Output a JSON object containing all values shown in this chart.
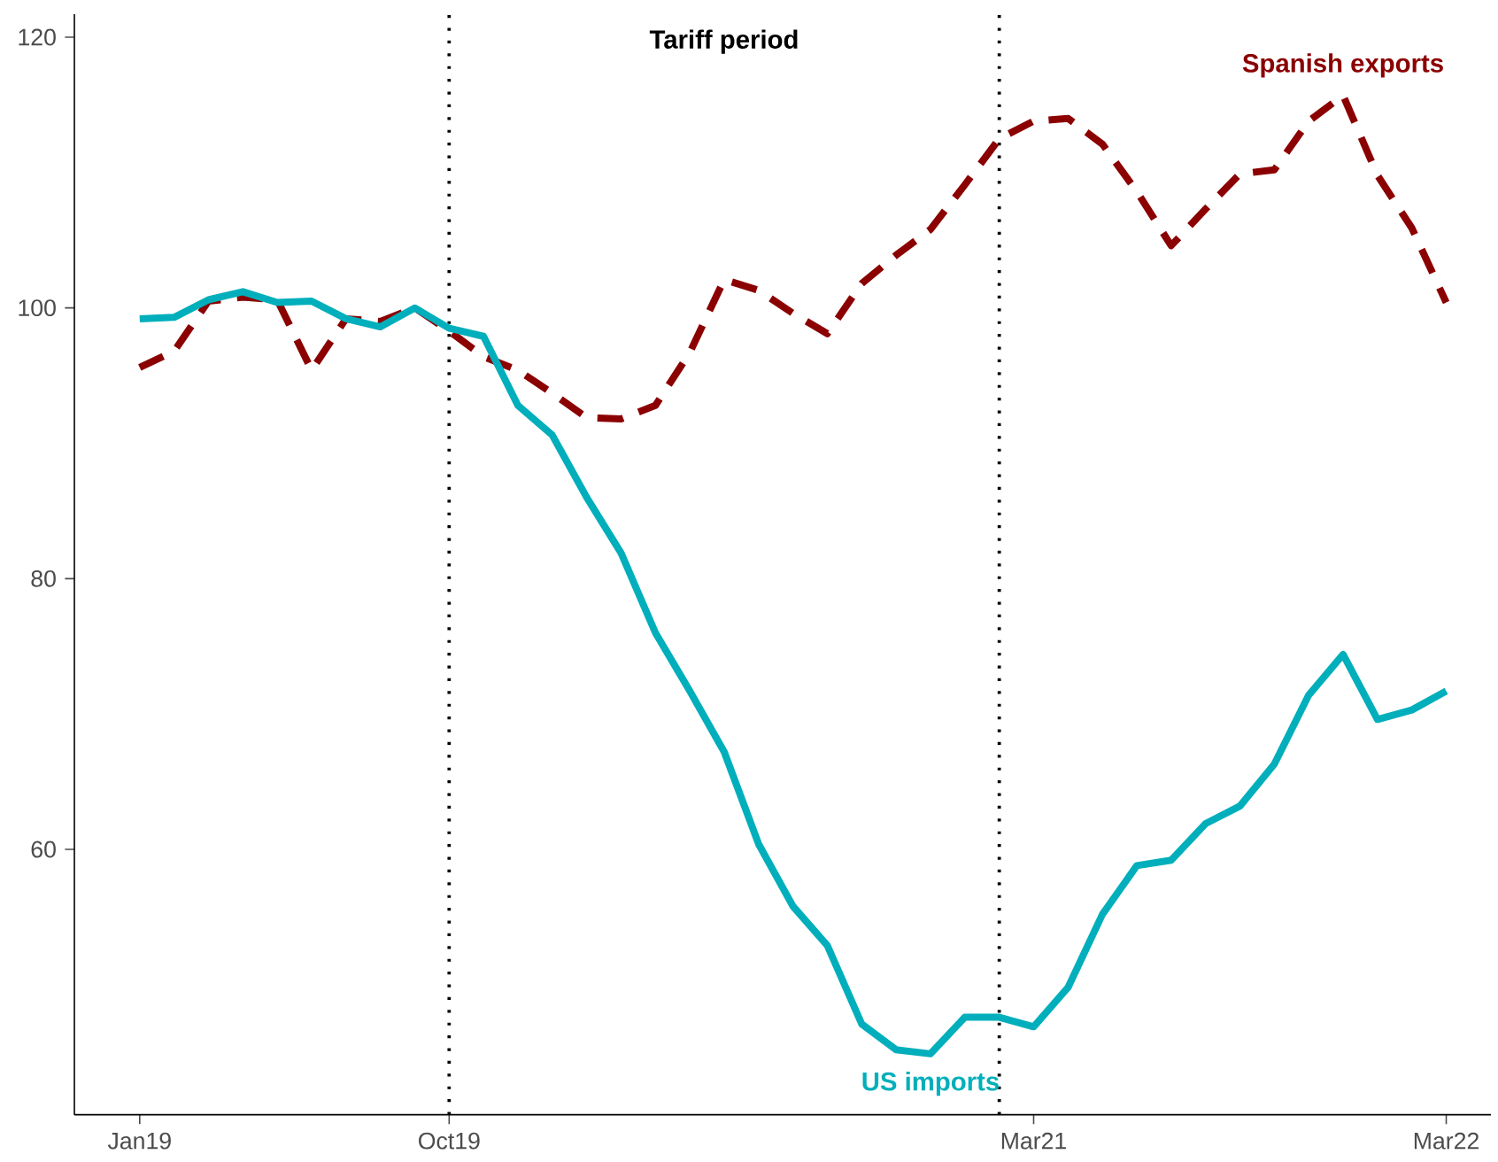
{
  "chart_data": {
    "type": "line",
    "x": [
      "2019-01",
      "2019-02",
      "2019-03",
      "2019-04",
      "2019-05",
      "2019-06",
      "2019-07",
      "2019-08",
      "2019-09",
      "2019-10",
      "2019-11",
      "2019-12",
      "2020-01",
      "2020-02",
      "2020-03",
      "2020-04",
      "2020-05",
      "2020-06",
      "2020-07",
      "2020-08",
      "2020-09",
      "2020-10",
      "2020-11",
      "2020-12",
      "2021-01",
      "2021-02",
      "2021-03",
      "2021-04",
      "2021-05",
      "2021-06",
      "2021-07",
      "2021-08",
      "2021-09",
      "2021-10",
      "2021-11",
      "2021-12",
      "2022-01",
      "2022-02",
      "2022-03"
    ],
    "series": [
      {
        "name": "Spanish exports",
        "color": "#8b0000",
        "line_style": "dashed",
        "values": [
          95.6,
          96.8,
          100.5,
          100.8,
          100.6,
          95.4,
          99.2,
          99.0,
          100.0,
          98.3,
          96.4,
          95.4,
          93.7,
          91.9,
          91.8,
          92.8,
          96.7,
          102.1,
          101.3,
          99.6,
          98.1,
          101.8,
          103.9,
          105.8,
          109.1,
          112.5,
          113.8,
          114.0,
          112.1,
          108.6,
          104.6,
          107.3,
          109.9,
          110.2,
          113.8,
          115.7,
          109.8,
          105.9,
          100.4
        ]
      },
      {
        "name": "US imports",
        "color": "#00afbb",
        "line_style": "solid",
        "values": [
          99.2,
          99.3,
          100.6,
          101.2,
          100.4,
          100.5,
          99.2,
          98.6,
          100.0,
          98.5,
          97.9,
          92.8,
          90.6,
          86.0,
          81.9,
          76.0,
          71.7,
          67.2,
          60.4,
          55.8,
          52.9,
          47.1,
          45.2,
          44.9,
          47.6,
          47.6,
          46.9,
          49.8,
          55.2,
          58.8,
          59.2,
          61.9,
          63.2,
          66.3,
          71.4,
          74.4,
          69.6,
          70.3,
          71.7
        ]
      }
    ],
    "xlim": [
      "2018-11-04",
      "2022-04-10"
    ],
    "xticks": [
      {
        "value": "2019-01",
        "label": "Jan19"
      },
      {
        "value": "2019-10",
        "label": "Oct19"
      },
      {
        "value": "2021-03",
        "label": "Mar21"
      },
      {
        "value": "2022-03",
        "label": "Mar22"
      }
    ],
    "ylim": [
      40.4,
      121.7
    ],
    "yticks": [
      60,
      80,
      100,
      120
    ],
    "ref_lines": [
      {
        "axis": "x",
        "value": "2019-10",
        "color": "#000000",
        "line_style": "dotted"
      },
      {
        "axis": "x",
        "value": "2021-02",
        "color": "#000000",
        "line_style": "dotted"
      }
    ],
    "annotations": [
      "Tariff period"
    ],
    "grid": false,
    "legend": false,
    "marker": "none"
  }
}
